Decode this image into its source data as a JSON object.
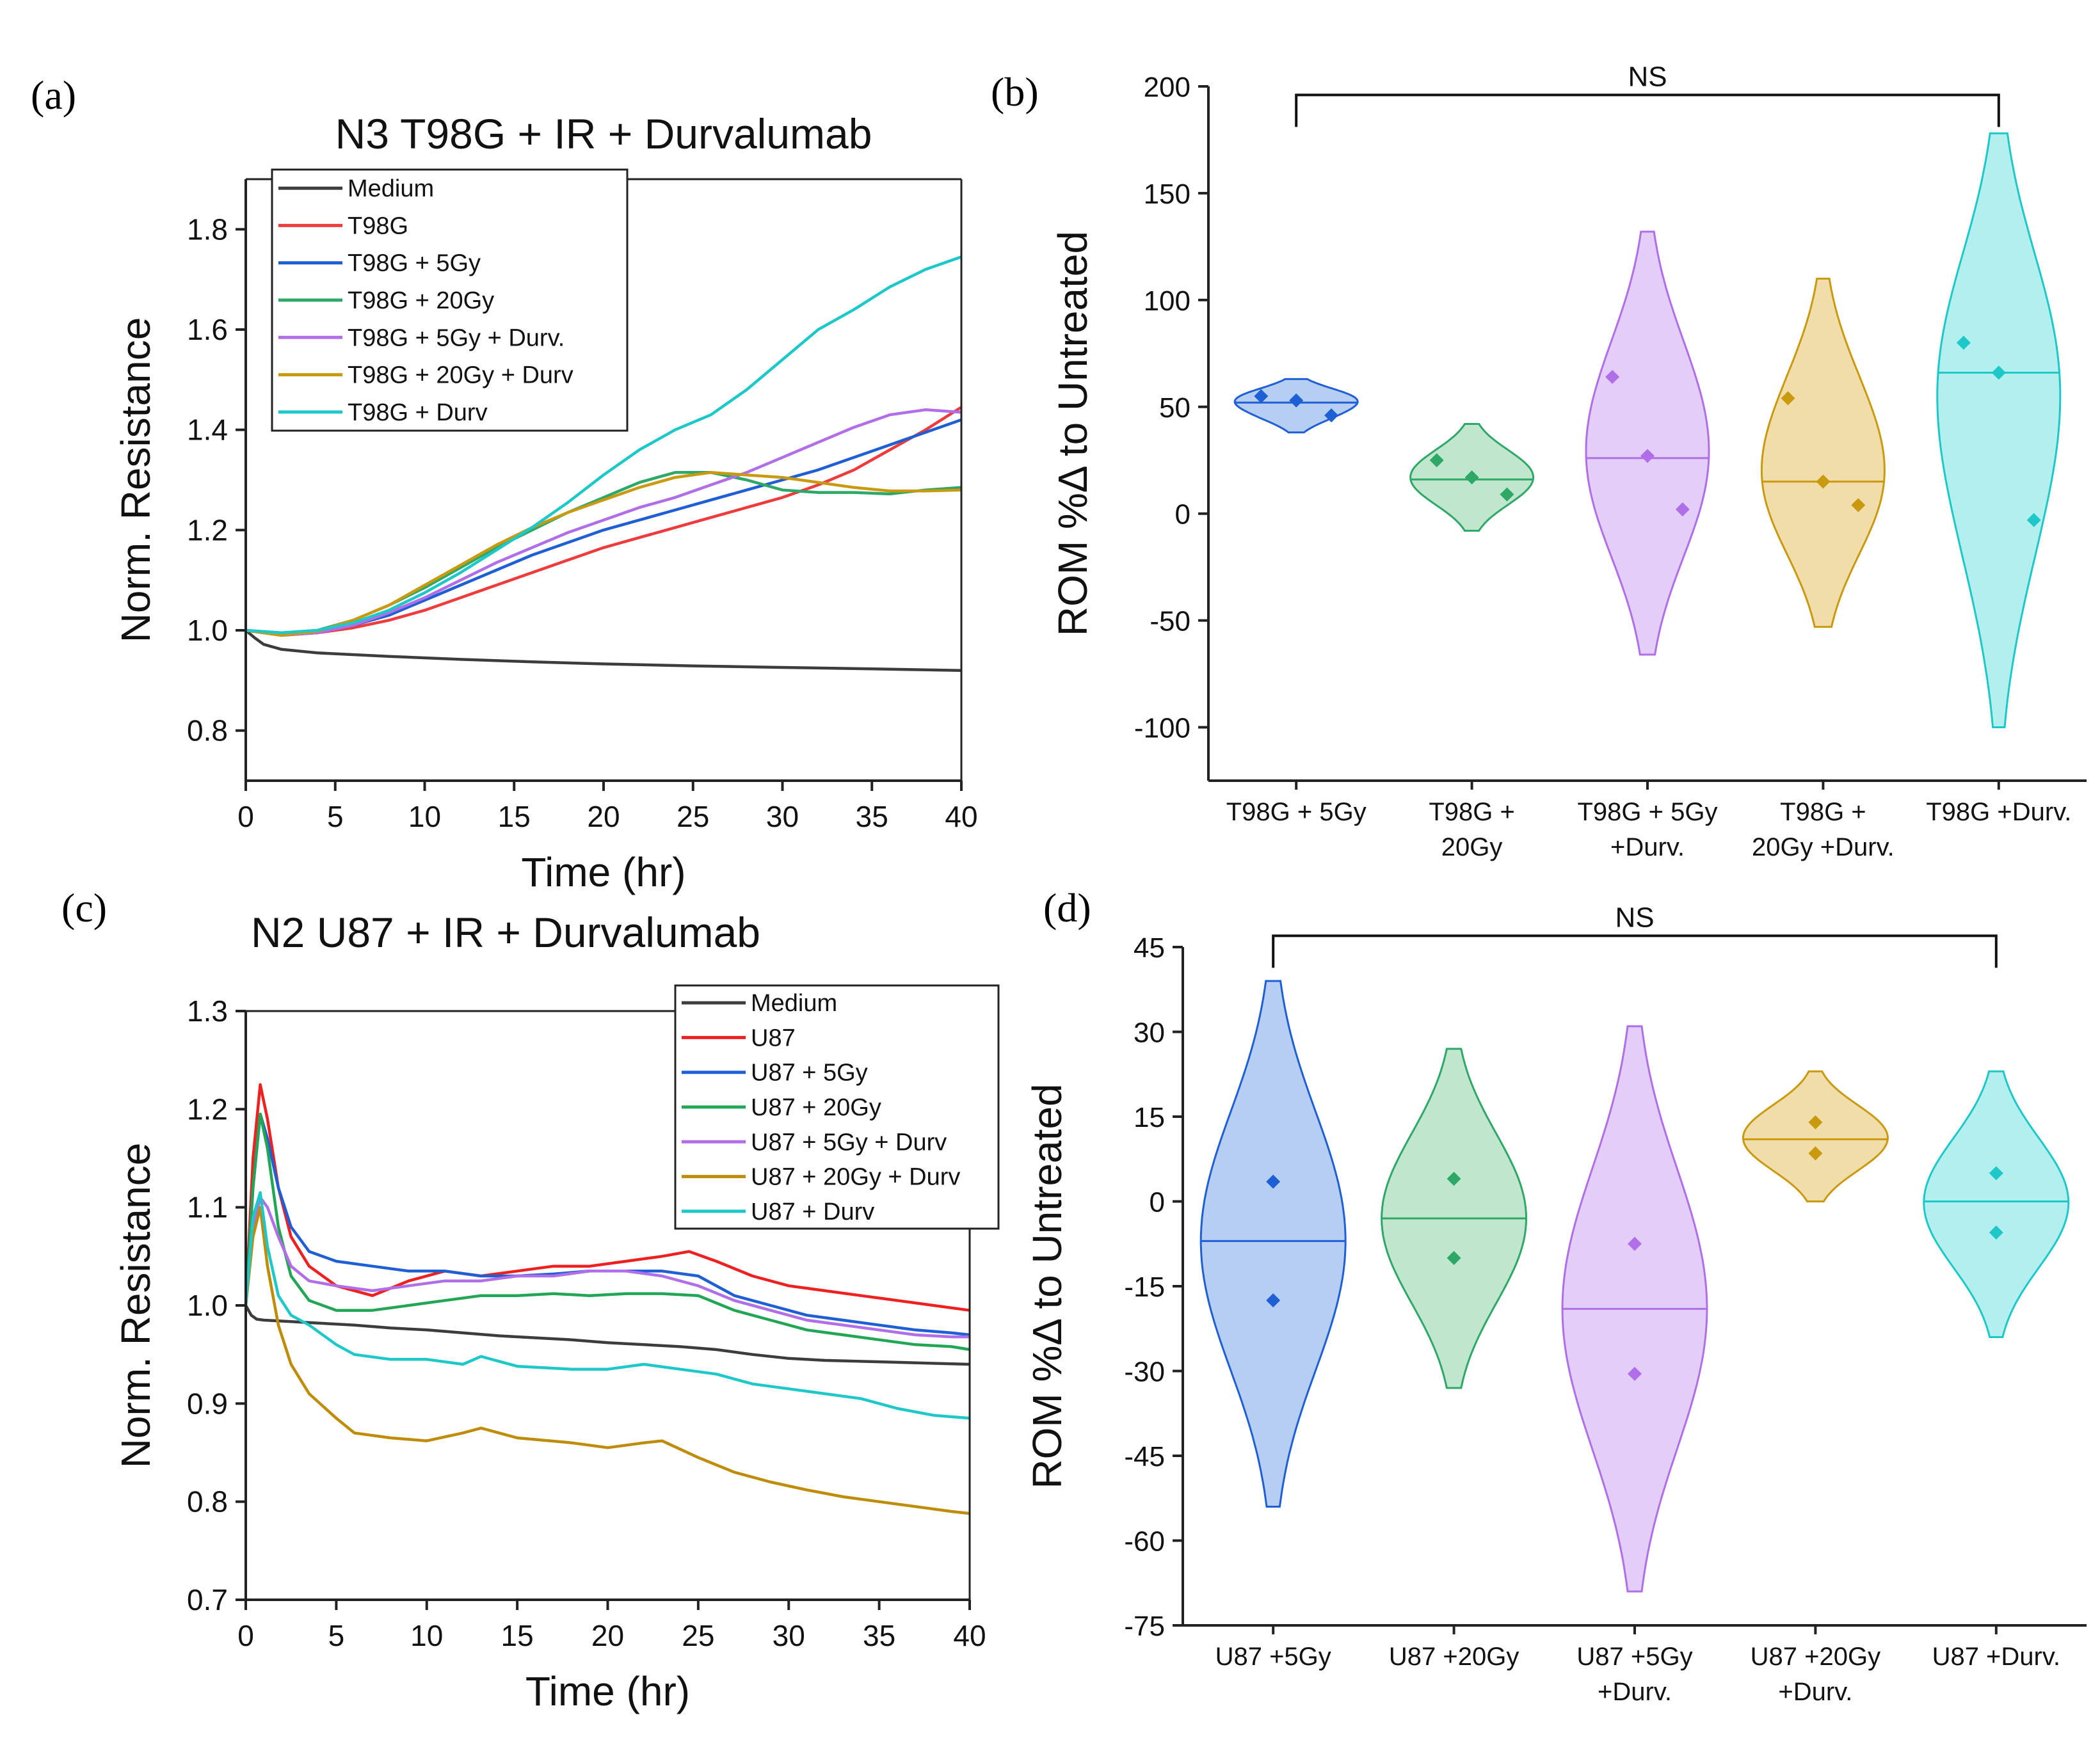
{
  "panels": {
    "a": "(a)",
    "b": "(b)",
    "c": "(c)",
    "d": "(d)"
  },
  "chart_data": [
    {
      "id": "a",
      "type": "line",
      "title": "N3 T98G + IR + Durvalumab",
      "xlabel": "Time (hr)",
      "ylabel": "Norm. Resistance",
      "xlim": [
        0,
        40
      ],
      "ylim": [
        0.7,
        1.9
      ],
      "xticks": [
        0,
        5,
        10,
        15,
        20,
        25,
        30,
        35,
        40
      ],
      "yticks": [
        0.8,
        1.0,
        1.2,
        1.4,
        1.6,
        1.8
      ],
      "ytick_labels": [
        "0.8",
        "1.0",
        "1.2",
        "1.4",
        "1.6",
        "1.8"
      ],
      "legend_position": "top-left",
      "series": [
        {
          "name": "Medium",
          "color": "#3c3c3c",
          "x": [
            0,
            0.5,
            1,
            2,
            4,
            8,
            12,
            16,
            20,
            25,
            30,
            35,
            40
          ],
          "y": [
            1.0,
            0.985,
            0.972,
            0.962,
            0.955,
            0.948,
            0.942,
            0.937,
            0.933,
            0.929,
            0.926,
            0.923,
            0.92
          ]
        },
        {
          "name": "T98G",
          "color": "#ee3b3b",
          "x": [
            0,
            2,
            4,
            6,
            8,
            10,
            12,
            14,
            16,
            18,
            20,
            22,
            24,
            26,
            28,
            30,
            32,
            34,
            36,
            38,
            40
          ],
          "y": [
            1.0,
            0.99,
            0.995,
            1.005,
            1.02,
            1.04,
            1.065,
            1.09,
            1.115,
            1.14,
            1.165,
            1.185,
            1.205,
            1.225,
            1.245,
            1.265,
            1.29,
            1.32,
            1.36,
            1.4,
            1.445
          ]
        },
        {
          "name": "T98G + 5Gy",
          "color": "#1f5fd6",
          "x": [
            0,
            2,
            4,
            6,
            8,
            10,
            12,
            14,
            16,
            18,
            20,
            22,
            24,
            26,
            28,
            30,
            32,
            34,
            36,
            38,
            40
          ],
          "y": [
            1.0,
            0.99,
            0.995,
            1.01,
            1.03,
            1.06,
            1.09,
            1.12,
            1.15,
            1.175,
            1.2,
            1.22,
            1.24,
            1.26,
            1.28,
            1.3,
            1.32,
            1.345,
            1.37,
            1.395,
            1.42
          ]
        },
        {
          "name": "T98G + 20Gy",
          "color": "#2ea866",
          "x": [
            0,
            2,
            4,
            6,
            8,
            10,
            12,
            14,
            16,
            18,
            20,
            22,
            24,
            26,
            28,
            30,
            32,
            34,
            36,
            38,
            40
          ],
          "y": [
            1.0,
            0.995,
            1.0,
            1.02,
            1.05,
            1.085,
            1.125,
            1.165,
            1.2,
            1.235,
            1.265,
            1.295,
            1.315,
            1.315,
            1.3,
            1.28,
            1.275,
            1.275,
            1.272,
            1.28,
            1.285
          ]
        },
        {
          "name": "T98G + 5Gy + Durv.",
          "color": "#b06ee8",
          "x": [
            0,
            2,
            4,
            6,
            8,
            10,
            12,
            14,
            16,
            18,
            20,
            22,
            24,
            26,
            28,
            30,
            32,
            34,
            36,
            38,
            40
          ],
          "y": [
            1.0,
            0.99,
            0.995,
            1.01,
            1.035,
            1.065,
            1.1,
            1.135,
            1.165,
            1.195,
            1.22,
            1.245,
            1.265,
            1.29,
            1.315,
            1.345,
            1.375,
            1.405,
            1.43,
            1.44,
            1.435
          ]
        },
        {
          "name": "T98G + 20Gy + Durv",
          "color": "#c99a10",
          "x": [
            0,
            2,
            4,
            6,
            8,
            10,
            12,
            14,
            16,
            18,
            20,
            22,
            24,
            26,
            28,
            30,
            32,
            34,
            36,
            38,
            40
          ],
          "y": [
            1.0,
            0.99,
            0.998,
            1.02,
            1.05,
            1.09,
            1.13,
            1.17,
            1.205,
            1.235,
            1.26,
            1.285,
            1.305,
            1.315,
            1.31,
            1.305,
            1.295,
            1.285,
            1.278,
            1.278,
            1.28
          ]
        },
        {
          "name": "T98G + Durv",
          "color": "#1ec8c8",
          "x": [
            0,
            2,
            4,
            6,
            8,
            10,
            12,
            14,
            16,
            18,
            20,
            22,
            24,
            26,
            28,
            30,
            32,
            34,
            36,
            38,
            40
          ],
          "y": [
            1.0,
            0.995,
            1.0,
            1.015,
            1.04,
            1.075,
            1.115,
            1.16,
            1.205,
            1.255,
            1.31,
            1.36,
            1.4,
            1.43,
            1.48,
            1.54,
            1.6,
            1.64,
            1.685,
            1.72,
            1.745
          ]
        }
      ]
    },
    {
      "id": "b",
      "type": "violin",
      "xlabel": "",
      "ylabel": "ROM %Δ to Untreated",
      "ylim": [
        -125,
        200
      ],
      "yticks": [
        -100,
        -50,
        0,
        50,
        100,
        150,
        200
      ],
      "significance": {
        "label": "NS",
        "from": 0,
        "to": 4,
        "y": 196
      },
      "categories": [
        {
          "label_lines": [
            "T98G + 5Gy"
          ],
          "color": "#1f5fd6",
          "fill": "#a9c6ef",
          "median": 52,
          "points": [
            55,
            53,
            46
          ],
          "range": [
            38,
            63
          ],
          "width": 0.7
        },
        {
          "label_lines": [
            "T98G +",
            "20Gy"
          ],
          "color": "#2ea866",
          "fill": "#b6e2c6",
          "median": 16,
          "points": [
            25,
            17,
            9
          ],
          "range": [
            -8,
            42
          ],
          "width": 0.7
        },
        {
          "label_lines": [
            "T98G + 5Gy",
            "+Durv."
          ],
          "color": "#b06ee8",
          "fill": "#ddc6f5",
          "median": 26,
          "points": [
            64,
            27,
            2
          ],
          "range": [
            -66,
            132
          ],
          "width": 0.7
        },
        {
          "label_lines": [
            "T98G +",
            "20Gy +Durv."
          ],
          "color": "#c99a10",
          "fill": "#eed79b",
          "median": 15,
          "points": [
            54,
            15,
            4
          ],
          "range": [
            -53,
            110
          ],
          "width": 0.7
        },
        {
          "label_lines": [
            "T98G +Durv."
          ],
          "color": "#1ec8c8",
          "fill": "#a7ecec",
          "median": 66,
          "points": [
            80,
            66,
            -3
          ],
          "range": [
            -100,
            178
          ],
          "width": 0.7
        }
      ]
    },
    {
      "id": "c",
      "type": "line",
      "title": "N2 U87 + IR + Durvalumab",
      "xlabel": "Time (hr)",
      "ylabel": "Norm. Resistance",
      "xlim": [
        0,
        40
      ],
      "ylim": [
        0.7,
        1.3
      ],
      "xticks": [
        0,
        5,
        10,
        15,
        20,
        25,
        30,
        35,
        40
      ],
      "yticks": [
        0.7,
        0.8,
        0.9,
        1.0,
        1.1,
        1.2,
        1.3
      ],
      "ytick_labels": [
        "0.7",
        "0.8",
        "0.9",
        "1.0",
        "1.1",
        "1.2",
        "1.3"
      ],
      "legend_position": "top-right",
      "series": [
        {
          "name": "Medium",
          "color": "#3c3c3c",
          "x": [
            0,
            0.3,
            0.6,
            1,
            2,
            4,
            6,
            8,
            10,
            12,
            14,
            16,
            18,
            20,
            22,
            24,
            26,
            28,
            30,
            32,
            34,
            36,
            38,
            40
          ],
          "y": [
            1.0,
            0.99,
            0.986,
            0.985,
            0.984,
            0.982,
            0.98,
            0.977,
            0.975,
            0.972,
            0.969,
            0.967,
            0.965,
            0.962,
            0.96,
            0.958,
            0.955,
            0.95,
            0.946,
            0.944,
            0.943,
            0.942,
            0.941,
            0.94
          ]
        },
        {
          "name": "U87",
          "color": "#ee2020",
          "x": [
            0,
            0.4,
            0.8,
            1.2,
            1.8,
            2.5,
            3.5,
            5,
            7,
            9,
            11,
            13,
            15,
            17,
            19,
            21,
            23,
            24.5,
            26,
            28,
            30,
            32,
            34,
            36,
            38,
            40
          ],
          "y": [
            1.0,
            1.15,
            1.225,
            1.19,
            1.12,
            1.07,
            1.04,
            1.02,
            1.01,
            1.025,
            1.035,
            1.03,
            1.035,
            1.04,
            1.04,
            1.045,
            1.05,
            1.055,
            1.045,
            1.03,
            1.02,
            1.015,
            1.01,
            1.005,
            1.0,
            0.995
          ]
        },
        {
          "name": "U87 + 5Gy",
          "color": "#1f5fd6",
          "x": [
            0,
            0.4,
            0.8,
            1.2,
            1.8,
            2.5,
            3.5,
            5,
            7,
            9,
            11,
            13,
            15,
            17,
            19,
            21,
            23,
            25,
            27,
            29,
            31,
            33,
            35,
            37,
            39,
            40
          ],
          "y": [
            1.0,
            1.12,
            1.195,
            1.17,
            1.12,
            1.08,
            1.055,
            1.045,
            1.04,
            1.035,
            1.035,
            1.03,
            1.03,
            1.032,
            1.035,
            1.035,
            1.035,
            1.03,
            1.01,
            1.0,
            0.99,
            0.985,
            0.98,
            0.975,
            0.972,
            0.97
          ]
        },
        {
          "name": "U87 + 20Gy",
          "color": "#22a655",
          "x": [
            0,
            0.4,
            0.8,
            1.2,
            1.8,
            2.5,
            3.5,
            5,
            7,
            9,
            11,
            13,
            15,
            17,
            19,
            21,
            23,
            25,
            27,
            29,
            31,
            33,
            35,
            37,
            39,
            40
          ],
          "y": [
            1.0,
            1.12,
            1.195,
            1.16,
            1.08,
            1.03,
            1.005,
            0.995,
            0.995,
            1.0,
            1.005,
            1.01,
            1.01,
            1.012,
            1.01,
            1.012,
            1.012,
            1.01,
            0.995,
            0.985,
            0.975,
            0.97,
            0.965,
            0.96,
            0.958,
            0.955
          ]
        },
        {
          "name": "U87 + 5Gy + Durv",
          "color": "#b06ee8",
          "x": [
            0,
            0.4,
            0.8,
            1.2,
            1.8,
            2.5,
            3.5,
            5,
            7,
            9,
            11,
            13,
            15,
            17,
            19,
            21,
            23,
            25,
            27,
            29,
            31,
            33,
            35,
            37,
            39,
            40
          ],
          "y": [
            1.0,
            1.08,
            1.11,
            1.1,
            1.07,
            1.04,
            1.025,
            1.02,
            1.015,
            1.02,
            1.025,
            1.025,
            1.03,
            1.03,
            1.035,
            1.035,
            1.03,
            1.02,
            1.005,
            0.995,
            0.985,
            0.98,
            0.975,
            0.97,
            0.968,
            0.968
          ]
        },
        {
          "name": "U87 + 20Gy + Durv",
          "color": "#bf8c08",
          "x": [
            0,
            0.4,
            0.8,
            1.2,
            1.8,
            2.5,
            3.5,
            5,
            6,
            8,
            10,
            12,
            13,
            15,
            18,
            20,
            22,
            23,
            25,
            27,
            29,
            31,
            33,
            35,
            37,
            39,
            40
          ],
          "y": [
            1.0,
            1.07,
            1.1,
            1.04,
            0.98,
            0.94,
            0.91,
            0.885,
            0.87,
            0.865,
            0.862,
            0.87,
            0.875,
            0.865,
            0.86,
            0.855,
            0.86,
            0.862,
            0.845,
            0.83,
            0.82,
            0.812,
            0.805,
            0.8,
            0.795,
            0.79,
            0.788
          ]
        },
        {
          "name": "U87 + Durv",
          "color": "#1ec8c8",
          "x": [
            0,
            0.4,
            0.8,
            1.2,
            1.8,
            2.5,
            3.5,
            5,
            6,
            8,
            10,
            12,
            13,
            15,
            18,
            20,
            22,
            24,
            26,
            28,
            30,
            32,
            34,
            36,
            38,
            40
          ],
          "y": [
            1.0,
            1.09,
            1.115,
            1.06,
            1.01,
            0.99,
            0.98,
            0.96,
            0.95,
            0.945,
            0.945,
            0.94,
            0.948,
            0.938,
            0.935,
            0.935,
            0.94,
            0.935,
            0.93,
            0.92,
            0.915,
            0.91,
            0.905,
            0.895,
            0.888,
            0.885
          ]
        }
      ]
    },
    {
      "id": "d",
      "type": "violin",
      "xlabel": "",
      "ylabel": "ROM %Δ to Untreated",
      "ylim": [
        -75,
        45
      ],
      "yticks": [
        -75,
        -60,
        -45,
        -30,
        -15,
        0,
        15,
        30,
        45
      ],
      "significance": {
        "label": "NS",
        "from": 0,
        "to": 4,
        "y": 47
      },
      "categories": [
        {
          "label_lines": [
            "U87 +5Gy"
          ],
          "color": "#1f5fd6",
          "fill": "#a9c6ef",
          "median": -7,
          "points": [
            3.5,
            -17.5
          ],
          "range": [
            -54,
            39
          ],
          "width": 0.8
        },
        {
          "label_lines": [
            "U87 +20Gy"
          ],
          "color": "#2ea866",
          "fill": "#b6e2c6",
          "median": -3,
          "points": [
            4,
            -10
          ],
          "range": [
            -33,
            27
          ],
          "width": 0.8
        },
        {
          "label_lines": [
            "U87 +5Gy",
            "+Durv."
          ],
          "color": "#b06ee8",
          "fill": "#ddc6f5",
          "median": -19,
          "points": [
            -7.5,
            -30.5
          ],
          "range": [
            -69,
            31
          ],
          "width": 0.8
        },
        {
          "label_lines": [
            "U87 +20Gy",
            "+Durv."
          ],
          "color": "#c99a10",
          "fill": "#eed79b",
          "median": 11,
          "points": [
            14,
            8.5
          ],
          "range": [
            0,
            23
          ],
          "width": 0.8
        },
        {
          "label_lines": [
            "U87 +Durv."
          ],
          "color": "#1ec8c8",
          "fill": "#a7ecec",
          "median": 0,
          "points": [
            5,
            -5.5
          ],
          "range": [
            -24,
            23
          ],
          "width": 0.8
        }
      ]
    }
  ]
}
